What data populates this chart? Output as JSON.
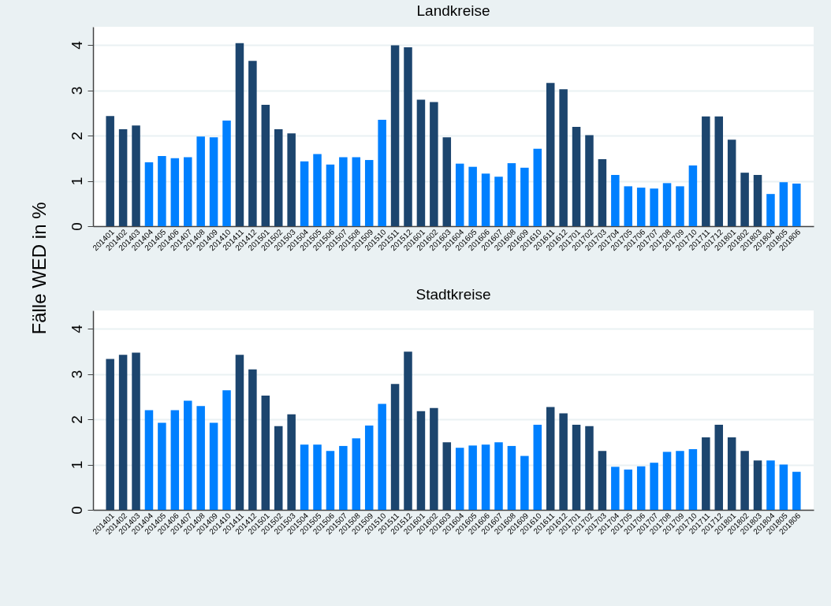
{
  "chart_data": [
    {
      "type": "bar",
      "title": "Landkreise",
      "ylabel": "Fälle WED in %",
      "categories": [
        "201401",
        "201402",
        "201403",
        "201404",
        "201405",
        "201406",
        "201407",
        "201408",
        "201409",
        "201410",
        "201411",
        "201412",
        "201501",
        "201502",
        "201503",
        "201504",
        "201505",
        "201506",
        "201507",
        "201508",
        "201509",
        "201510",
        "201511",
        "201512",
        "201601",
        "201602",
        "201603",
        "201604",
        "201605",
        "201606",
        "201607",
        "201608",
        "201609",
        "201610",
        "201611",
        "201612",
        "201701",
        "201702",
        "201703",
        "201704",
        "201705",
        "201706",
        "201707",
        "201708",
        "201709",
        "201710",
        "201711",
        "201712",
        "201801",
        "201802",
        "201803",
        "201804",
        "201805",
        "201806"
      ],
      "values": [
        2.43,
        2.14,
        2.22,
        1.41,
        1.55,
        1.5,
        1.52,
        1.98,
        1.96,
        2.33,
        4.04,
        3.65,
        2.68,
        2.14,
        2.05,
        1.43,
        1.59,
        1.36,
        1.52,
        1.52,
        1.46,
        2.35,
        3.99,
        3.95,
        2.79,
        2.74,
        1.96,
        1.38,
        1.31,
        1.16,
        1.09,
        1.39,
        1.29,
        1.71,
        3.16,
        3.02,
        2.19,
        2.01,
        1.48,
        1.13,
        0.88,
        0.85,
        0.83,
        0.95,
        0.88,
        1.34,
        2.42,
        2.42,
        1.91,
        1.18,
        1.13,
        0.71,
        0.97,
        0.94
      ],
      "colors": [
        "#1c456e",
        "#1c456e",
        "#1c456e",
        "#0080ff",
        "#0080ff",
        "#0080ff",
        "#0080ff",
        "#0080ff",
        "#0080ff",
        "#0080ff",
        "#1c456e",
        "#1c456e",
        "#1c456e",
        "#1c456e",
        "#1c456e",
        "#0080ff",
        "#0080ff",
        "#0080ff",
        "#0080ff",
        "#0080ff",
        "#0080ff",
        "#0080ff",
        "#1c456e",
        "#1c456e",
        "#1c456e",
        "#1c456e",
        "#1c456e",
        "#0080ff",
        "#0080ff",
        "#0080ff",
        "#0080ff",
        "#0080ff",
        "#0080ff",
        "#0080ff",
        "#1c456e",
        "#1c456e",
        "#1c456e",
        "#1c456e",
        "#1c456e",
        "#0080ff",
        "#0080ff",
        "#0080ff",
        "#0080ff",
        "#0080ff",
        "#0080ff",
        "#0080ff",
        "#1c456e",
        "#1c456e",
        "#1c456e",
        "#1c456e",
        "#1c456e",
        "#0080ff",
        "#0080ff",
        "#0080ff"
      ],
      "ylim": [
        0,
        4.4
      ],
      "yticks": [
        0,
        1,
        2,
        3,
        4
      ],
      "grid": "y"
    },
    {
      "type": "bar",
      "title": "Stadtkreise",
      "categories": [
        "201401",
        "201402",
        "201403",
        "201404",
        "201405",
        "201406",
        "201407",
        "201408",
        "201409",
        "201410",
        "201411",
        "201412",
        "201501",
        "201502",
        "201503",
        "201504",
        "201505",
        "201506",
        "201507",
        "201508",
        "201509",
        "201510",
        "201511",
        "201512",
        "201601",
        "201602",
        "201603",
        "201604",
        "201605",
        "201606",
        "201607",
        "201608",
        "201609",
        "201610",
        "201611",
        "201612",
        "201701",
        "201702",
        "201703",
        "201704",
        "201705",
        "201706",
        "201707",
        "201708",
        "201709",
        "201710",
        "201711",
        "201712",
        "201801",
        "201802",
        "201803",
        "201804",
        "201805",
        "201806"
      ],
      "values": [
        3.33,
        3.42,
        3.47,
        2.2,
        1.92,
        2.2,
        2.41,
        2.29,
        1.92,
        2.64,
        3.42,
        3.1,
        2.52,
        1.85,
        2.11,
        1.44,
        1.44,
        1.3,
        1.41,
        1.58,
        1.86,
        2.34,
        2.78,
        3.49,
        2.18,
        2.25,
        1.49,
        1.37,
        1.42,
        1.44,
        1.49,
        1.41,
        1.19,
        1.88,
        2.27,
        2.13,
        1.88,
        1.85,
        1.3,
        0.95,
        0.89,
        0.96,
        1.04,
        1.28,
        1.3,
        1.34,
        1.6,
        1.88,
        1.6,
        1.3,
        1.09,
        1.09,
        1.0,
        0.84
      ],
      "colors": [
        "#1c456e",
        "#1c456e",
        "#1c456e",
        "#0080ff",
        "#0080ff",
        "#0080ff",
        "#0080ff",
        "#0080ff",
        "#0080ff",
        "#0080ff",
        "#1c456e",
        "#1c456e",
        "#1c456e",
        "#1c456e",
        "#1c456e",
        "#0080ff",
        "#0080ff",
        "#0080ff",
        "#0080ff",
        "#0080ff",
        "#0080ff",
        "#0080ff",
        "#1c456e",
        "#1c456e",
        "#1c456e",
        "#1c456e",
        "#1c456e",
        "#0080ff",
        "#0080ff",
        "#0080ff",
        "#0080ff",
        "#0080ff",
        "#0080ff",
        "#0080ff",
        "#1c456e",
        "#1c456e",
        "#1c456e",
        "#1c456e",
        "#1c456e",
        "#0080ff",
        "#0080ff",
        "#0080ff",
        "#0080ff",
        "#0080ff",
        "#0080ff",
        "#0080ff",
        "#1c456e",
        "#1c456e",
        "#1c456e",
        "#1c456e",
        "#1c456e",
        "#0080ff",
        "#0080ff",
        "#0080ff"
      ],
      "ylim": [
        0,
        4.4
      ],
      "yticks": [
        0,
        1,
        2,
        3,
        4
      ],
      "grid": "y"
    }
  ]
}
